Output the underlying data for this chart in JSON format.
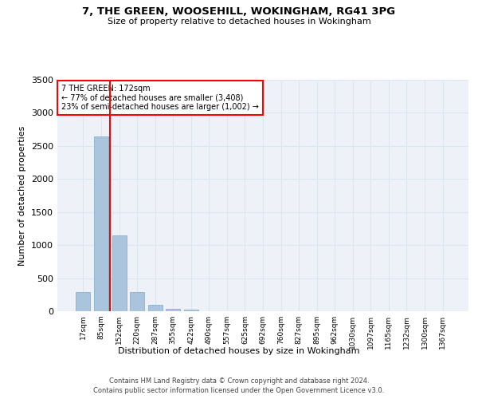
{
  "title_line1": "7, THE GREEN, WOOSEHILL, WOKINGHAM, RG41 3PG",
  "title_line2": "Size of property relative to detached houses in Wokingham",
  "xlabel": "Distribution of detached houses by size in Wokingham",
  "ylabel": "Number of detached properties",
  "bar_labels": [
    "17sqm",
    "85sqm",
    "152sqm",
    "220sqm",
    "287sqm",
    "355sqm",
    "422sqm",
    "490sqm",
    "557sqm",
    "625sqm",
    "692sqm",
    "760sqm",
    "827sqm",
    "895sqm",
    "962sqm",
    "1030sqm",
    "1097sqm",
    "1165sqm",
    "1232sqm",
    "1300sqm",
    "1367sqm"
  ],
  "bar_values": [
    295,
    2640,
    1145,
    295,
    95,
    35,
    20,
    0,
    0,
    0,
    0,
    0,
    0,
    0,
    0,
    0,
    0,
    0,
    0,
    0,
    0
  ],
  "bar_color": "#aac4dd",
  "bar_edge_color": "#7aaac8",
  "grid_color": "#dce6f1",
  "vline_color": "red",
  "annotation_text": "7 THE GREEN: 172sqm\n← 77% of detached houses are smaller (3,408)\n23% of semi-detached houses are larger (1,002) →",
  "ylim": [
    0,
    3500
  ],
  "yticks": [
    0,
    500,
    1000,
    1500,
    2000,
    2500,
    3000,
    3500
  ],
  "footer_line1": "Contains HM Land Registry data © Crown copyright and database right 2024.",
  "footer_line2": "Contains public sector information licensed under the Open Government Licence v3.0.",
  "bg_color": "#ffffff",
  "plot_bg_color": "#eef2f8"
}
